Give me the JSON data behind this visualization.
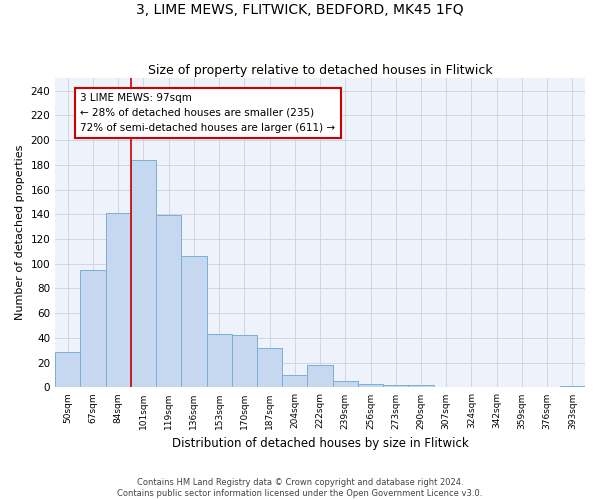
{
  "title": "3, LIME MEWS, FLITWICK, BEDFORD, MK45 1FQ",
  "subtitle": "Size of property relative to detached houses in Flitwick",
  "xlabel": "Distribution of detached houses by size in Flitwick",
  "ylabel": "Number of detached properties",
  "categories": [
    "50sqm",
    "67sqm",
    "84sqm",
    "101sqm",
    "119sqm",
    "136sqm",
    "153sqm",
    "170sqm",
    "187sqm",
    "204sqm",
    "222sqm",
    "239sqm",
    "256sqm",
    "273sqm",
    "290sqm",
    "307sqm",
    "324sqm",
    "342sqm",
    "359sqm",
    "376sqm",
    "393sqm"
  ],
  "values": [
    29,
    95,
    141,
    184,
    139,
    106,
    43,
    42,
    32,
    10,
    18,
    5,
    3,
    2,
    2,
    0,
    0,
    0,
    0,
    0,
    1
  ],
  "bar_color": "#c5d8ef",
  "bar_edge_color": "#7aafd4",
  "grid_color": "#d0d0e0",
  "vline_x_index": 3,
  "vline_color": "#cc0000",
  "annotation_line1": "3 LIME MEWS: 97sqm",
  "annotation_line2": "← 28% of detached houses are smaller (235)",
  "annotation_line3": "72% of semi-detached houses are larger (611) →",
  "annotation_box_color": "#ffffff",
  "annotation_box_edge": "#cc0000",
  "ylim": [
    0,
    250
  ],
  "yticks": [
    0,
    20,
    40,
    60,
    80,
    100,
    120,
    140,
    160,
    180,
    200,
    220,
    240
  ],
  "footer": "Contains HM Land Registry data © Crown copyright and database right 2024.\nContains public sector information licensed under the Open Government Licence v3.0.",
  "background_color": "#eef2fa"
}
